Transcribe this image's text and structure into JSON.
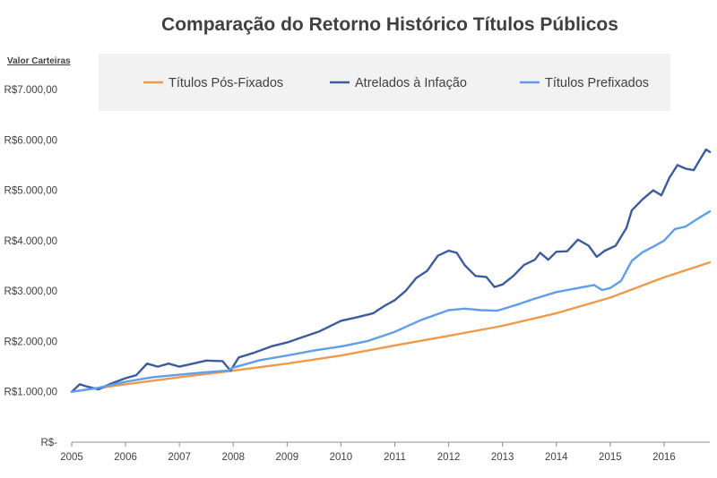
{
  "chart_data": {
    "type": "line",
    "title": "Comparação do Retorno Histórico Títulos Públicos",
    "ylabel": "Valor Carteiras",
    "xlabel": "",
    "xlim": [
      2005,
      2016.85
    ],
    "ylim": [
      0,
      7000
    ],
    "y_ticks": [
      0,
      1000,
      2000,
      3000,
      4000,
      5000,
      6000,
      7000
    ],
    "y_tick_labels": [
      "R$-",
      "R$1.000,00",
      "R$2.000,00",
      "R$3.000,00",
      "R$4.000,00",
      "R$5.000,00",
      "R$6.000,00",
      "R$7.000,00"
    ],
    "x_ticks": [
      2005,
      2006,
      2007,
      2008,
      2009,
      2010,
      2011,
      2012,
      2013,
      2014,
      2015,
      2016
    ],
    "x_tick_labels": [
      "2005",
      "2006",
      "2007",
      "2008",
      "2009",
      "2010",
      "2011",
      "2012",
      "2013",
      "2014",
      "2015",
      "2016"
    ],
    "grid": false,
    "legend": "top",
    "series": [
      {
        "name": "Títulos Pós-Fixados",
        "color": "#ED9A4B",
        "points": [
          [
            2005,
            1000
          ],
          [
            2006,
            1150
          ],
          [
            2007,
            1290
          ],
          [
            2008,
            1420
          ],
          [
            2009,
            1560
          ],
          [
            2010,
            1720
          ],
          [
            2011,
            1920
          ],
          [
            2012,
            2110
          ],
          [
            2013,
            2310
          ],
          [
            2014,
            2560
          ],
          [
            2015,
            2870
          ],
          [
            2016,
            3270
          ],
          [
            2016.85,
            3570
          ]
        ]
      },
      {
        "name": "Atrelados à Infação",
        "color": "#3E5B9C",
        "points": [
          [
            2005,
            1000
          ],
          [
            2005.15,
            1150
          ],
          [
            2005.3,
            1100
          ],
          [
            2005.5,
            1050
          ],
          [
            2005.7,
            1150
          ],
          [
            2006,
            1270
          ],
          [
            2006.2,
            1330
          ],
          [
            2006.4,
            1560
          ],
          [
            2006.6,
            1500
          ],
          [
            2006.8,
            1560
          ],
          [
            2007,
            1500
          ],
          [
            2007.3,
            1570
          ],
          [
            2007.5,
            1620
          ],
          [
            2007.8,
            1610
          ],
          [
            2007.95,
            1420
          ],
          [
            2008.1,
            1680
          ],
          [
            2008.4,
            1780
          ],
          [
            2008.7,
            1900
          ],
          [
            2009,
            1980
          ],
          [
            2009.3,
            2090
          ],
          [
            2009.6,
            2200
          ],
          [
            2010,
            2410
          ],
          [
            2010.3,
            2480
          ],
          [
            2010.6,
            2560
          ],
          [
            2010.8,
            2700
          ],
          [
            2011,
            2820
          ],
          [
            2011.2,
            3000
          ],
          [
            2011.4,
            3260
          ],
          [
            2011.6,
            3400
          ],
          [
            2011.8,
            3700
          ],
          [
            2012,
            3800
          ],
          [
            2012.15,
            3760
          ],
          [
            2012.3,
            3510
          ],
          [
            2012.5,
            3300
          ],
          [
            2012.7,
            3280
          ],
          [
            2012.85,
            3080
          ],
          [
            2013,
            3130
          ],
          [
            2013.2,
            3300
          ],
          [
            2013.4,
            3520
          ],
          [
            2013.6,
            3620
          ],
          [
            2013.7,
            3760
          ],
          [
            2013.85,
            3620
          ],
          [
            2014,
            3780
          ],
          [
            2014.2,
            3790
          ],
          [
            2014.4,
            4020
          ],
          [
            2014.6,
            3900
          ],
          [
            2014.75,
            3680
          ],
          [
            2014.9,
            3800
          ],
          [
            2015.1,
            3900
          ],
          [
            2015.3,
            4250
          ],
          [
            2015.4,
            4600
          ],
          [
            2015.6,
            4820
          ],
          [
            2015.8,
            5000
          ],
          [
            2015.95,
            4900
          ],
          [
            2016.1,
            5250
          ],
          [
            2016.25,
            5500
          ],
          [
            2016.4,
            5430
          ],
          [
            2016.55,
            5400
          ],
          [
            2016.65,
            5580
          ],
          [
            2016.78,
            5810
          ],
          [
            2016.85,
            5760
          ]
        ]
      },
      {
        "name": "Títulos Prefixados",
        "color": "#5F9EE8",
        "points": [
          [
            2005,
            1000
          ],
          [
            2005.5,
            1080
          ],
          [
            2006,
            1200
          ],
          [
            2006.5,
            1290
          ],
          [
            2007,
            1340
          ],
          [
            2007.5,
            1390
          ],
          [
            2007.9,
            1420
          ],
          [
            2008,
            1480
          ],
          [
            2008.5,
            1630
          ],
          [
            2009,
            1720
          ],
          [
            2009.5,
            1820
          ],
          [
            2010,
            1900
          ],
          [
            2010.5,
            2010
          ],
          [
            2011,
            2190
          ],
          [
            2011.5,
            2430
          ],
          [
            2012,
            2620
          ],
          [
            2012.3,
            2650
          ],
          [
            2012.6,
            2620
          ],
          [
            2012.9,
            2610
          ],
          [
            2013,
            2640
          ],
          [
            2013.3,
            2740
          ],
          [
            2013.6,
            2850
          ],
          [
            2014,
            2980
          ],
          [
            2014.4,
            3060
          ],
          [
            2014.7,
            3120
          ],
          [
            2014.85,
            3020
          ],
          [
            2015,
            3060
          ],
          [
            2015.2,
            3200
          ],
          [
            2015.4,
            3600
          ],
          [
            2015.6,
            3770
          ],
          [
            2015.8,
            3880
          ],
          [
            2016,
            4000
          ],
          [
            2016.2,
            4230
          ],
          [
            2016.4,
            4280
          ],
          [
            2016.6,
            4420
          ],
          [
            2016.85,
            4580
          ]
        ]
      }
    ]
  }
}
